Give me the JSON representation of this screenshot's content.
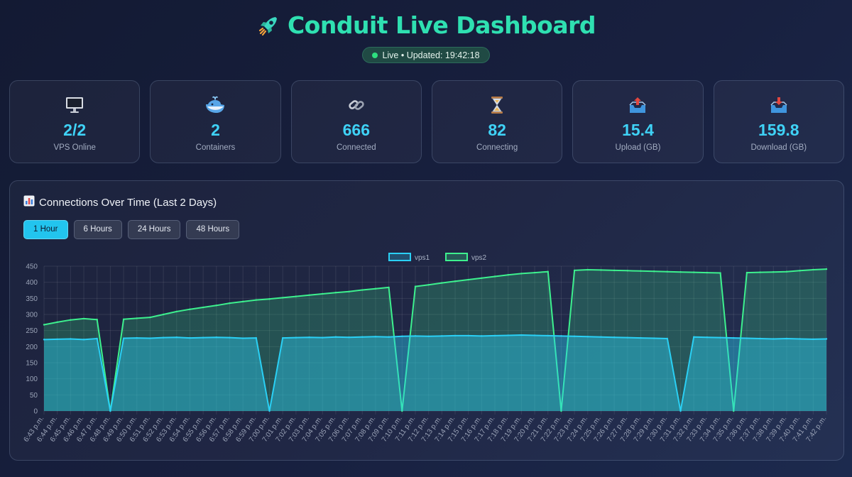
{
  "header": {
    "title": "Conduit Live Dashboard",
    "icon": "rocket-icon",
    "status": "Live • Updated: 19:42:18"
  },
  "stats": [
    {
      "icon": "monitor-icon",
      "value": "2/2",
      "label": "VPS Online"
    },
    {
      "icon": "whale-icon",
      "value": "2",
      "label": "Containers"
    },
    {
      "icon": "link-icon",
      "value": "666",
      "label": "Connected"
    },
    {
      "icon": "hourglass-icon",
      "value": "82",
      "label": "Connecting"
    },
    {
      "icon": "outbox-tray-icon",
      "value": "15.4",
      "label": "Upload (GB)"
    },
    {
      "icon": "inbox-tray-icon",
      "value": "159.8",
      "label": "Download (GB)"
    }
  ],
  "panel": {
    "title": "Connections Over Time (Last 2 Days)",
    "icon": "bar-chart-icon",
    "ranges": [
      "1 Hour",
      "6 Hours",
      "24 Hours",
      "48 Hours"
    ],
    "active_range": "1 Hour"
  },
  "colors": {
    "accent": "#2fe0b1",
    "vps1": "#2ad0f5",
    "vps2": "#3df08e",
    "value": "#3fd2f6"
  },
  "chart_data": {
    "type": "area",
    "title": "",
    "xlabel": "",
    "ylabel": "",
    "ylim": [
      0,
      450
    ],
    "yticks": [
      0,
      50,
      100,
      150,
      200,
      250,
      300,
      350,
      400,
      450
    ],
    "grid": true,
    "legend": "top-center",
    "categories": [
      "6:43 p.m.",
      "6:44 p.m.",
      "6:45 p.m.",
      "6:46 p.m.",
      "6:47 p.m.",
      "6:48 p.m.",
      "6:49 p.m.",
      "6:50 p.m.",
      "6:51 p.m.",
      "6:52 p.m.",
      "6:53 p.m.",
      "6:54 p.m.",
      "6:55 p.m.",
      "6:56 p.m.",
      "6:57 p.m.",
      "6:58 p.m.",
      "6:59 p.m.",
      "7:00 p.m.",
      "7:01 p.m.",
      "7:02 p.m.",
      "7:03 p.m.",
      "7:04 p.m.",
      "7:05 p.m.",
      "7:06 p.m.",
      "7:07 p.m.",
      "7:08 p.m.",
      "7:09 p.m.",
      "7:10 p.m.",
      "7:11 p.m.",
      "7:12 p.m.",
      "7:13 p.m.",
      "7:14 p.m.",
      "7:15 p.m.",
      "7:16 p.m.",
      "7:17 p.m.",
      "7:18 p.m.",
      "7:19 p.m.",
      "7:20 p.m.",
      "7:21 p.m.",
      "7:22 p.m.",
      "7:23 p.m.",
      "7:24 p.m.",
      "7:25 p.m.",
      "7:26 p.m.",
      "7:27 p.m.",
      "7:28 p.m.",
      "7:29 p.m.",
      "7:30 p.m.",
      "7:31 p.m.",
      "7:32 p.m.",
      "7:33 p.m.",
      "7:34 p.m.",
      "7:35 p.m.",
      "7:36 p.m.",
      "7:37 p.m.",
      "7:38 p.m.",
      "7:39 p.m.",
      "7:40 p.m.",
      "7:41 p.m.",
      "7:42 p.m."
    ],
    "series": [
      {
        "name": "vps1",
        "values": [
          222,
          223,
          224,
          222,
          225,
          0,
          226,
          227,
          226,
          228,
          229,
          227,
          228,
          229,
          228,
          226,
          227,
          0,
          227,
          228,
          229,
          228,
          230,
          229,
          230,
          231,
          230,
          232,
          233,
          232,
          233,
          234,
          234,
          233,
          234,
          235,
          236,
          235,
          234,
          233,
          232,
          231,
          230,
          229,
          228,
          227,
          226,
          225,
          0,
          230,
          229,
          228,
          227,
          226,
          225,
          224,
          225,
          224,
          223,
          224
        ]
      },
      {
        "name": "vps2",
        "values": [
          268,
          276,
          283,
          287,
          284,
          0,
          285,
          288,
          291,
          300,
          309,
          316,
          322,
          328,
          335,
          340,
          345,
          348,
          352,
          356,
          360,
          364,
          368,
          371,
          376,
          380,
          384,
          0,
          387,
          392,
          398,
          403,
          408,
          413,
          418,
          423,
          427,
          430,
          433,
          0,
          437,
          439,
          438,
          437,
          436,
          435,
          434,
          433,
          432,
          431,
          430,
          429,
          0,
          430,
          431,
          432,
          433,
          436,
          439,
          441
        ]
      }
    ]
  }
}
